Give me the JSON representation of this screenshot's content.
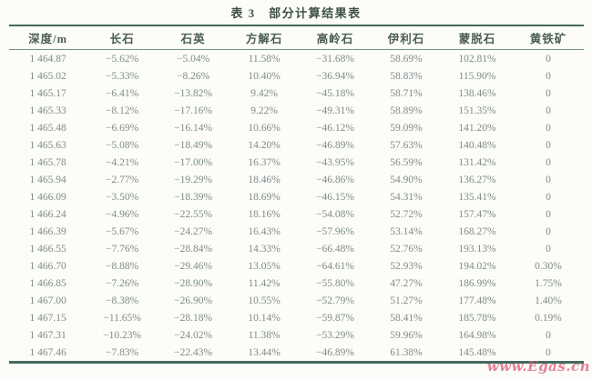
{
  "title": "表 3　部分计算结果表",
  "watermark": "www.Egas.cn",
  "colors": {
    "rule_dark": "#416b5e",
    "rule_light": "#6f9288",
    "header_text": "#4b5d55",
    "body_text": "#7f8d87",
    "watermark_pink": "#de5c7a",
    "background": "#fcfcf8"
  },
  "table": {
    "headers": [
      "深度/m",
      "长石",
      "石英",
      "方解石",
      "高岭石",
      "伊利石",
      "蒙脱石",
      "黄铁矿"
    ],
    "rows": [
      [
        "1 464.87",
        "−5.62%",
        "−5.04%",
        "11.58%",
        "−31.68%",
        "58.69%",
        "102.81%",
        "0"
      ],
      [
        "1 465.02",
        "−5.33%",
        "−8.26%",
        "10.40%",
        "−36.94%",
        "58.83%",
        "115.90%",
        "0"
      ],
      [
        "1 465.17",
        "−6.41%",
        "−13.82%",
        "9.42%",
        "−45.18%",
        "58.71%",
        "138.46%",
        "0"
      ],
      [
        "1 465.33",
        "−8.12%",
        "−17.16%",
        "9.22%",
        "−49.31%",
        "58.89%",
        "151.35%",
        "0"
      ],
      [
        "1 465.48",
        "−6.69%",
        "−16.14%",
        "10.66%",
        "−46.12%",
        "59.09%",
        "141.20%",
        "0"
      ],
      [
        "1 465.63",
        "−5.08%",
        "−18.49%",
        "14.20%",
        "−46.89%",
        "57.63%",
        "140.48%",
        "0"
      ],
      [
        "1 465.78",
        "−4.21%",
        "−17.00%",
        "16.37%",
        "−43.95%",
        "56.59%",
        "131.42%",
        "0"
      ],
      [
        "1 465.94",
        "−2.77%",
        "−19.29%",
        "18.46%",
        "−46.86%",
        "54.90%",
        "136.27%",
        "0"
      ],
      [
        "1 466.09",
        "−3.50%",
        "−18.39%",
        "18.69%",
        "−46.15%",
        "54.31%",
        "135.41%",
        "0"
      ],
      [
        "1 466.24",
        "−4.96%",
        "−22.55%",
        "18.16%",
        "−54.08%",
        "52.72%",
        "157.47%",
        "0"
      ],
      [
        "1 466.39",
        "−5.67%",
        "−24.27%",
        "16.43%",
        "−57.96%",
        "53.14%",
        "168.27%",
        "0"
      ],
      [
        "1 466.55",
        "−7.76%",
        "−28.84%",
        "14.33%",
        "−66.48%",
        "52.76%",
        "193.13%",
        "0"
      ],
      [
        "1 466.70",
        "−8.88%",
        "−29.46%",
        "13.05%",
        "−64.61%",
        "52.93%",
        "194.02%",
        "0.30%"
      ],
      [
        "1 466.85",
        "−7.26%",
        "−28.90%",
        "11.42%",
        "−55.80%",
        "47.27%",
        "186.99%",
        "1.75%"
      ],
      [
        "1 467.00",
        "−8.38%",
        "−26.90%",
        "10.55%",
        "−52.79%",
        "51.27%",
        "177.48%",
        "1.40%"
      ],
      [
        "1 467.15",
        "−11.65%",
        "−28.18%",
        "10.14%",
        "−59.87%",
        "58.41%",
        "185.78%",
        "0.19%"
      ],
      [
        "1 467.31",
        "−10.23%",
        "−24.02%",
        "11.38%",
        "−53.29%",
        "59.96%",
        "164.98%",
        "0"
      ],
      [
        "1 467.46",
        "−7.83%",
        "−22.43%",
        "13.44%",
        "−46.89%",
        "61.38%",
        "145.48%",
        "0"
      ]
    ]
  }
}
